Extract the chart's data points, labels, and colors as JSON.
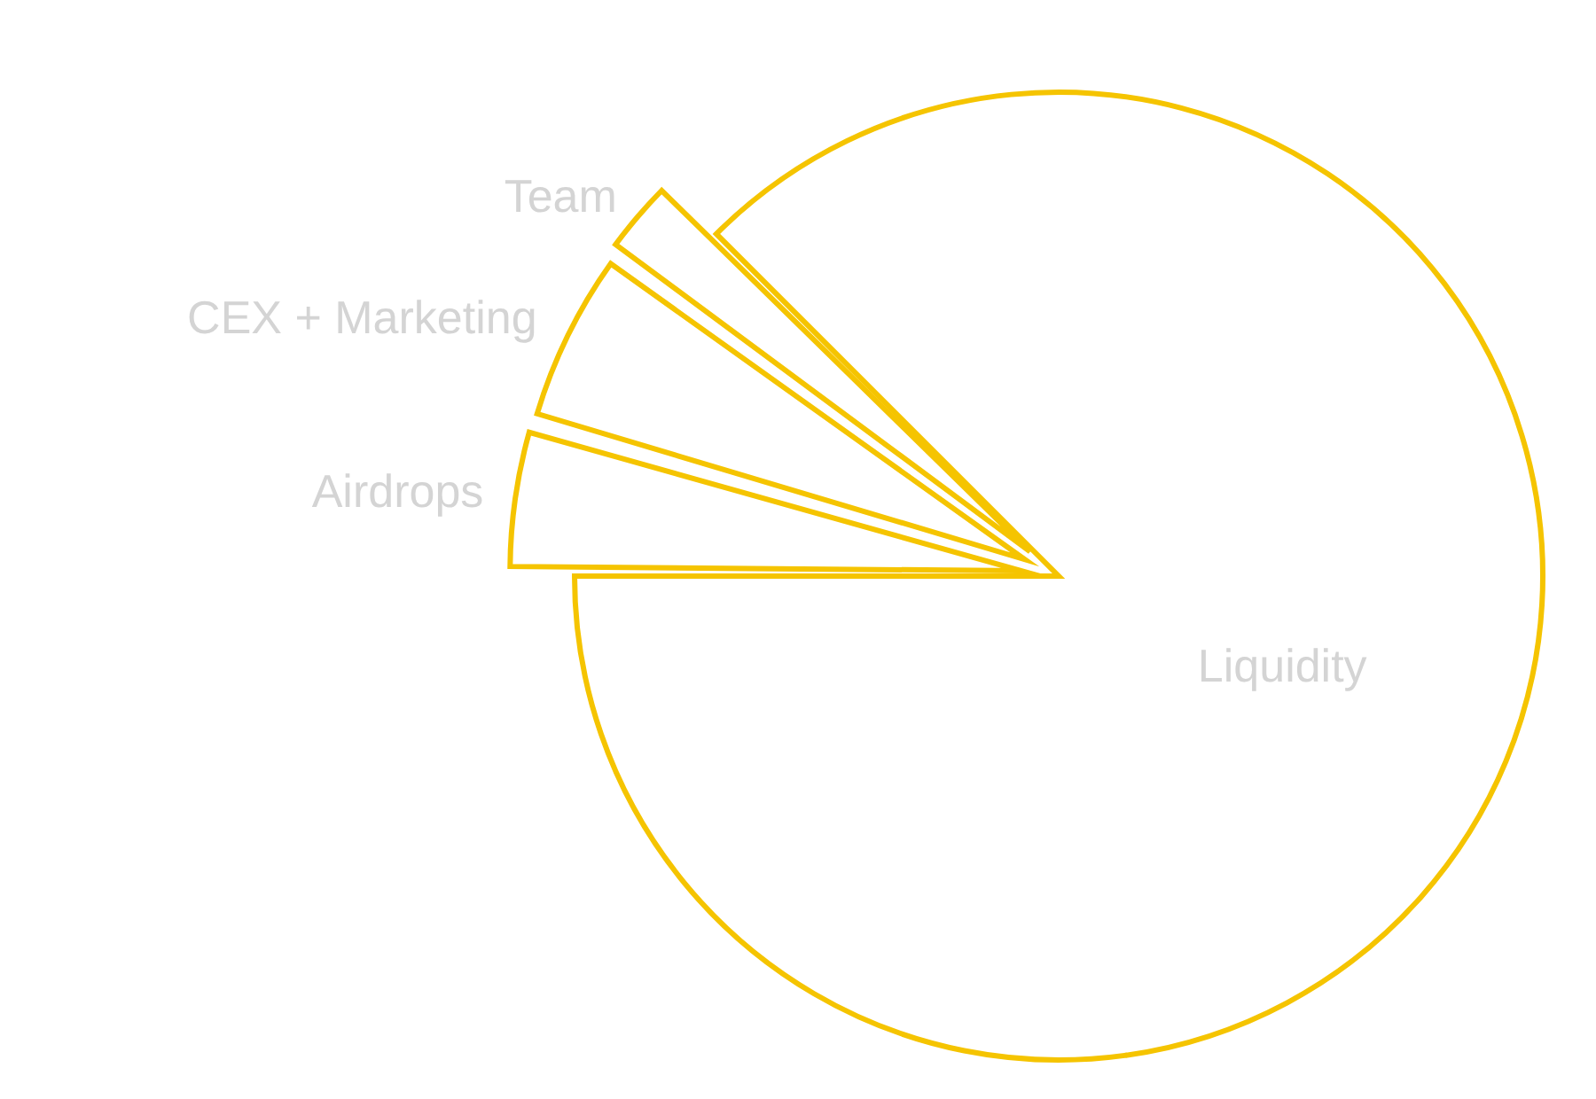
{
  "chart_data": {
    "type": "pie",
    "categories": [
      "Liquidity",
      "Airdrops",
      "CEX + Marketing",
      "Team"
    ],
    "values": [
      87.5,
      4.5,
      5.5,
      2.5
    ],
    "colors": [
      "#f5c400",
      "#f5c400",
      "#f5c400",
      "#f5c400"
    ],
    "legend": false
  }
}
